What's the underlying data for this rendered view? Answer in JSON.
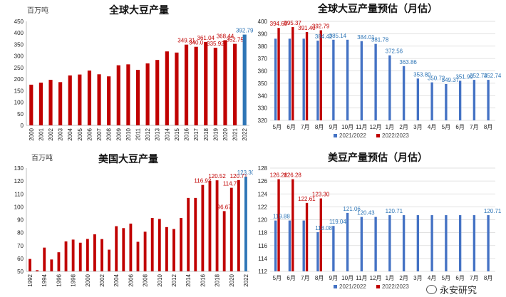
{
  "chart_data": [
    {
      "type": "bar",
      "title": "全球大豆产量",
      "unit": "百万吨",
      "categories": [
        "2000",
        "2001",
        "2002",
        "2003",
        "2004",
        "2005",
        "2006",
        "2007",
        "2008",
        "2009",
        "2010",
        "2011",
        "2012",
        "2013",
        "2014",
        "2015",
        "2016",
        "2017",
        "2018",
        "2019",
        "2020",
        "2021",
        "2022"
      ],
      "values": [
        176,
        185,
        197,
        187,
        216,
        220,
        237,
        221,
        212,
        260,
        264,
        240,
        268,
        283,
        320,
        315,
        349.31,
        340.0,
        361.04,
        335.92,
        368.44,
        352.75,
        392.79
      ],
      "data_labels": {
        "16": "349.31",
        "17": "340.0",
        "18": "361.04",
        "19": "335.92",
        "20": "368.44",
        "21": "352.75",
        "22": "392.79"
      },
      "highlight_index": 22,
      "ylim": [
        0,
        450
      ],
      "yticks": [
        0,
        50,
        100,
        150,
        200,
        250,
        300,
        350,
        400,
        450
      ],
      "colors": {
        "bar": "#c00000",
        "highlight": "#2e75b6",
        "axis": "#bfbfbf"
      }
    },
    {
      "type": "bar",
      "title": "全球大豆产量预估（月估）",
      "categories": [
        "5月",
        "6月",
        "7月",
        "8月",
        "9月",
        "10月",
        "11月",
        "12月",
        "1月",
        "2月",
        "3月",
        "4月",
        "5月",
        "6月",
        "7月",
        "8月"
      ],
      "series": [
        {
          "name": "2021/2022",
          "values": [
            386,
            386,
            386,
            384.42,
            385.14,
            385.14,
            384.01,
            381.78,
            372.56,
            363.86,
            353.8,
            350.72,
            349.37,
            351.99,
            352.74,
            352.74
          ],
          "data_labels": {
            "3": "384.42",
            "4": "385.14",
            "6": "384.01",
            "7": "381.78",
            "8": "372.56",
            "9": "363.86",
            "10": "353.80",
            "11": "350.72",
            "12": "349.37",
            "13": "351.99",
            "14": "352.74",
            "15": "352.74"
          }
        },
        {
          "name": "2022/2023",
          "values": [
            394.69,
            395.37,
            391.4,
            392.79,
            null,
            null,
            null,
            null,
            null,
            null,
            null,
            null,
            null,
            null,
            null,
            null
          ],
          "data_labels": {
            "0": "394.69",
            "1": "395.37",
            "2": "391.40",
            "3": "392.79"
          }
        }
      ],
      "ylim": [
        320,
        400
      ],
      "yticks": [
        320,
        330,
        340,
        350,
        360,
        370,
        380,
        390,
        400
      ],
      "colors": {
        "s1": "#4472c4",
        "s2": "#c00000",
        "s1_label": "#2e75b6",
        "s2_label": "#c00000",
        "grid": "#d9d9d9"
      }
    },
    {
      "type": "bar",
      "title": "美国大豆产量",
      "unit": "百万吨",
      "categories": [
        "1992",
        "1993",
        "1994",
        "1995",
        "1996",
        "1997",
        "1998",
        "1999",
        "2000",
        "2001",
        "2002",
        "2003",
        "2004",
        "2005",
        "2006",
        "2007",
        "2008",
        "2009",
        "2010",
        "2011",
        "2012",
        "2013",
        "2014",
        "2015",
        "2016",
        "2017",
        "2018",
        "2019",
        "2020",
        "2021",
        "2022"
      ],
      "xtick_labels": [
        "1992",
        "",
        "1994",
        "",
        "1996",
        "",
        "1998",
        "",
        "2000",
        "",
        "2002",
        "",
        "2004",
        "",
        "2006",
        "",
        "2008",
        "",
        "2010",
        "",
        "2012",
        "",
        "2014",
        "",
        "2016",
        "",
        "2018",
        "",
        "2020",
        "",
        "2022"
      ],
      "values": [
        59.6,
        50.9,
        68.4,
        59.2,
        64.8,
        73.2,
        74.6,
        72.2,
        75.1,
        78.7,
        75.0,
        66.8,
        85.0,
        83.5,
        87.0,
        72.9,
        80.7,
        91.4,
        90.6,
        84.3,
        82.8,
        91.4,
        106.9,
        106.9,
        116.93,
        120.07,
        120.52,
        96.67,
        114.75,
        120.71,
        123.3
      ],
      "data_labels": {
        "24": "116.93",
        "26": "120.52",
        "27": "96.67",
        "28": "114.75",
        "29": "120.71",
        "30": "123.30"
      },
      "highlight_index": 30,
      "ylim": [
        50,
        130
      ],
      "yticks": [
        50,
        60,
        70,
        80,
        90,
        100,
        110,
        120,
        130
      ],
      "colors": {
        "bar": "#c00000",
        "highlight": "#2e75b6",
        "axis": "#bfbfbf"
      }
    },
    {
      "type": "bar",
      "title": "美豆产量预估（月估）",
      "categories": [
        "5月",
        "6月",
        "7月",
        "8月",
        "9月",
        "10月",
        "11月",
        "12月",
        "1月",
        "2月",
        "3月",
        "4月",
        "5月",
        "6月",
        "7月",
        "8月"
      ],
      "series": [
        {
          "name": "2021/2022",
          "values": [
            119.88,
            119.88,
            119.88,
            118.08,
            119.04,
            121.06,
            120.43,
            120.43,
            120.71,
            120.71,
            120.71,
            120.71,
            120.71,
            120.71,
            120.71,
            120.71
          ],
          "data_labels": {
            "0": "119.88",
            "3": "118.08",
            "4": "119.04",
            "5": "121.06",
            "6": "120.43",
            "8": "120.71",
            "15": "120.71"
          }
        },
        {
          "name": "2022/2023",
          "values": [
            126.28,
            126.28,
            122.61,
            123.3,
            null,
            null,
            null,
            null,
            null,
            null,
            null,
            null,
            null,
            null,
            null,
            null
          ],
          "data_labels": {
            "0": "126.28",
            "1": "126.28",
            "2": "122.61",
            "3": "123.30"
          }
        }
      ],
      "ylim": [
        112,
        128
      ],
      "yticks": [
        112,
        114,
        116,
        118,
        120,
        122,
        124,
        126,
        128
      ],
      "colors": {
        "s1": "#4472c4",
        "s2": "#c00000",
        "s1_label": "#2e75b6",
        "s2_label": "#c00000",
        "grid": "#d9d9d9"
      }
    }
  ],
  "watermark": "永安研究"
}
